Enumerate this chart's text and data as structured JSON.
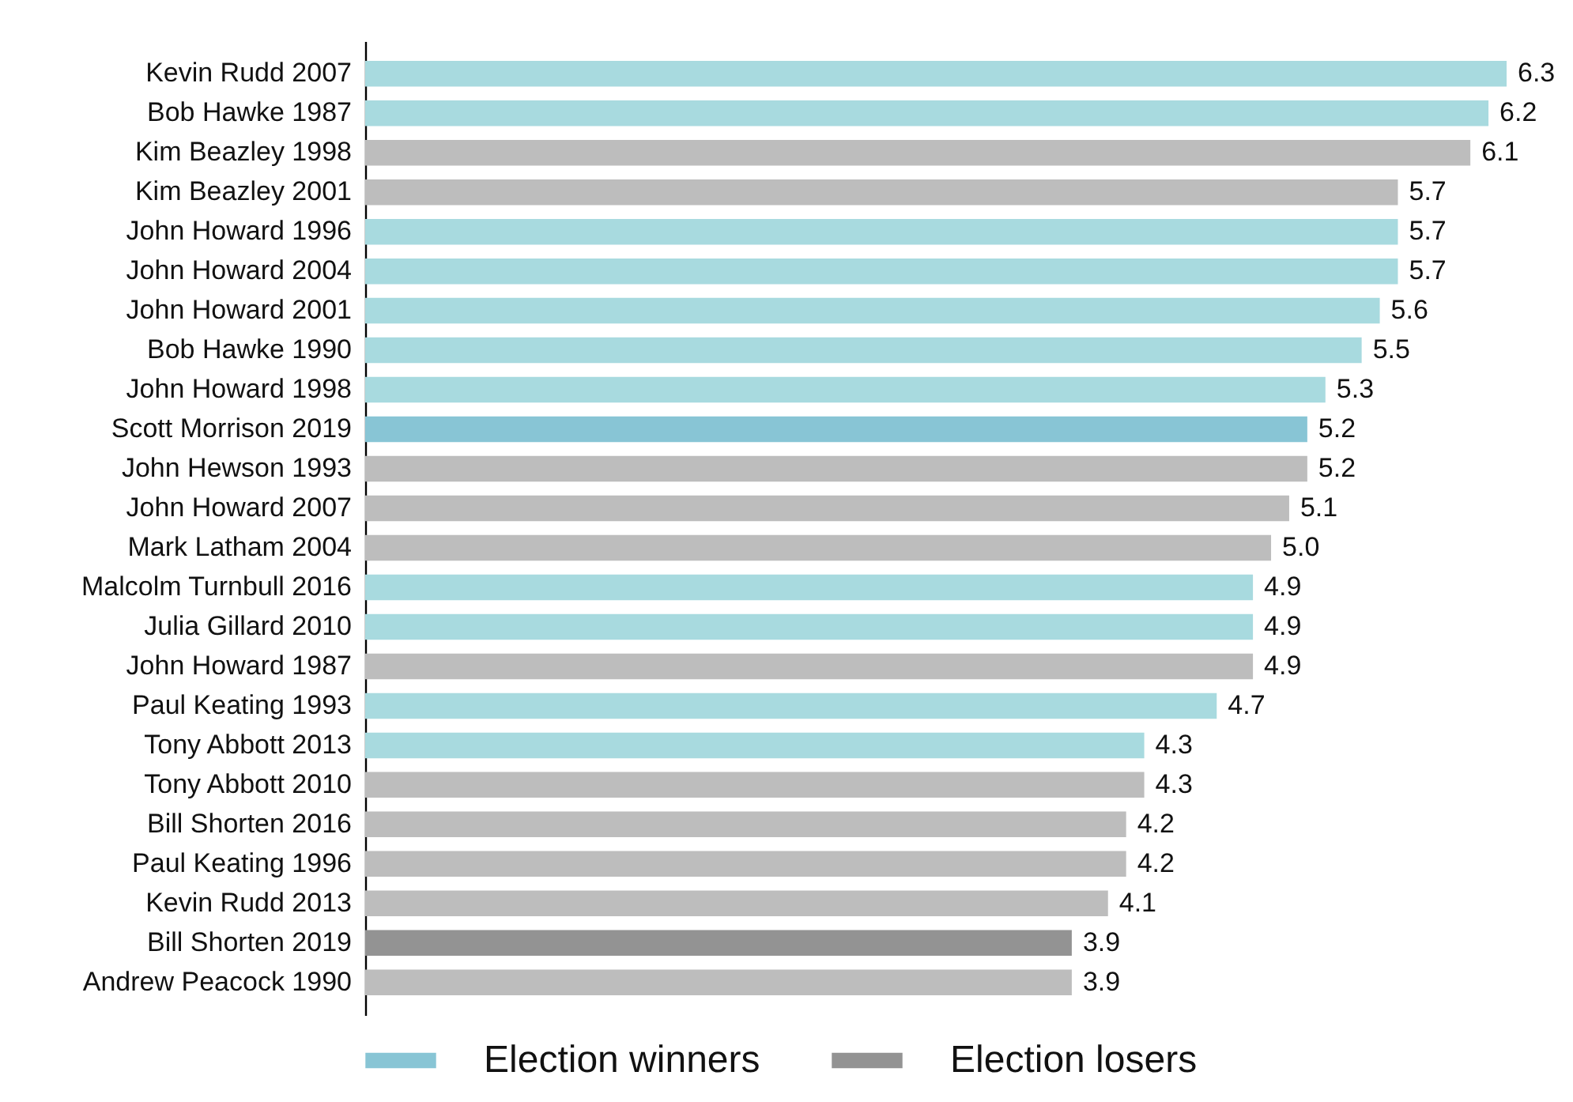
{
  "chart_data": {
    "type": "bar",
    "orientation": "horizontal",
    "legend": "bottom",
    "categories": [
      "Kevin Rudd 2007",
      "Bob Hawke 1987",
      "Kim Beazley 1998",
      "Kim Beazley 2001",
      "John Howard 1996",
      "John Howard 2004",
      "John Howard 2001",
      "Bob Hawke 1990",
      "John Howard 1998",
      "Scott Morrison 2019",
      "John Hewson 1993",
      "John Howard 2007",
      "Mark Latham 2004",
      "Malcolm Turnbull 2016",
      "Julia Gillard 2010",
      "John Howard 1987",
      "Paul Keating 1993",
      "Tony Abbott 2013",
      "Tony Abbott 2010",
      "Bill Shorten 2016",
      "Paul Keating 1996",
      "Kevin Rudd 2013",
      "Bill Shorten 2019",
      "Andrew Peacock 1990"
    ],
    "series": [
      {
        "name": "Election winners",
        "color": "#88c5d5",
        "colors": [
          "#a8dadf",
          "#a8dadf",
          null,
          null,
          "#a8dadf",
          "#a8dadf",
          "#a8dadf",
          "#a8dadf",
          "#a8dadf",
          "#88c5d5",
          null,
          null,
          null,
          "#a8dadf",
          "#a8dadf",
          null,
          "#a8dadf",
          "#a8dadf",
          null,
          null,
          null,
          null,
          null,
          null
        ],
        "values": [
          6.3,
          6.2,
          null,
          null,
          5.7,
          5.7,
          5.6,
          5.5,
          5.3,
          5.2,
          null,
          null,
          null,
          4.9,
          4.9,
          null,
          4.7,
          4.3,
          null,
          null,
          null,
          null,
          null,
          null
        ],
        "value_labels": [
          "6.3",
          "6.2",
          null,
          null,
          "5.7",
          "5.7",
          "5.6",
          "5.5",
          "5.3",
          "5.2",
          null,
          null,
          null,
          "4.9",
          "4.9",
          null,
          "4.7",
          "4.3",
          null,
          null,
          null,
          null,
          null,
          null
        ]
      },
      {
        "name": "Election losers",
        "color": "#939393",
        "colors": [
          null,
          null,
          "#bdbdbd",
          "#bdbdbd",
          null,
          null,
          null,
          null,
          null,
          null,
          "#bdbdbd",
          "#bdbdbd",
          "#bdbdbd",
          null,
          null,
          "#bdbdbd",
          null,
          null,
          "#bdbdbd",
          "#bdbdbd",
          "#bdbdbd",
          "#bdbdbd",
          "#939393",
          "#bdbdbd"
        ],
        "values": [
          null,
          null,
          6.1,
          5.7,
          null,
          null,
          null,
          null,
          null,
          null,
          5.2,
          5.1,
          5.0,
          null,
          null,
          4.9,
          null,
          null,
          4.3,
          4.2,
          4.2,
          4.1,
          3.9,
          3.9
        ],
        "value_labels": [
          null,
          null,
          "6.1",
          "5.7",
          null,
          null,
          null,
          null,
          null,
          null,
          "5.2",
          "5.1",
          "5.0",
          null,
          null,
          "4.9",
          null,
          null,
          "4.3",
          "4.2",
          "4.2",
          "4.1",
          "3.9",
          "3.9"
        ]
      }
    ]
  }
}
